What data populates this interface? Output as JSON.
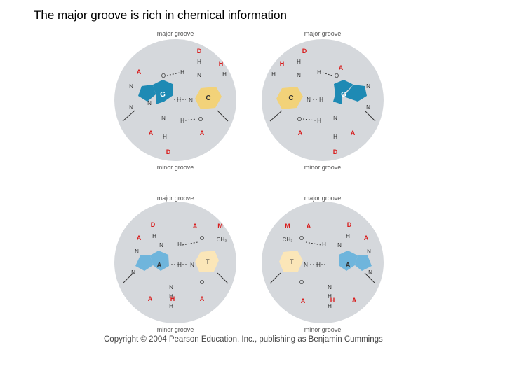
{
  "title": "The major groove is rich in chemical information",
  "copyright": "Copyright © 2004 Pearson Education, Inc., publishing as Benjamin Cummings",
  "colors": {
    "circle": "#d5d8dc",
    "purine_g": "#1e8ab4",
    "pyrimidine_c": "#f2d279",
    "purine_a": "#6fb5dc",
    "pyrimidine_t": "#fbe6b8",
    "code_red": "#d81c1c"
  },
  "panels": [
    {
      "id": "gc",
      "major": "major groove",
      "minor": "minor groove",
      "left_base": "G",
      "right_base": "C",
      "major_codes": [
        "A",
        "D",
        "H"
      ],
      "minor_codes": [
        "A",
        "D",
        "A"
      ]
    },
    {
      "id": "cg",
      "major": "major groove",
      "minor": "minor groove",
      "left_base": "C",
      "right_base": "G",
      "major_codes": [
        "H",
        "D",
        "A"
      ],
      "minor_codes": [
        "A",
        "D",
        "A"
      ]
    },
    {
      "id": "at",
      "major": "major groove",
      "minor": "minor groove",
      "left_base": "A",
      "right_base": "T",
      "methyl": "CH₃",
      "major_codes": [
        "A",
        "D",
        "A",
        "M"
      ],
      "minor_codes": [
        "A",
        "H",
        "A"
      ]
    },
    {
      "id": "ta",
      "major": "major groove",
      "minor": "minor groove",
      "left_base": "T",
      "right_base": "A",
      "methyl": "CH₃",
      "major_codes": [
        "M",
        "A",
        "D",
        "A"
      ],
      "minor_codes": [
        "A",
        "H",
        "A"
      ]
    }
  ]
}
